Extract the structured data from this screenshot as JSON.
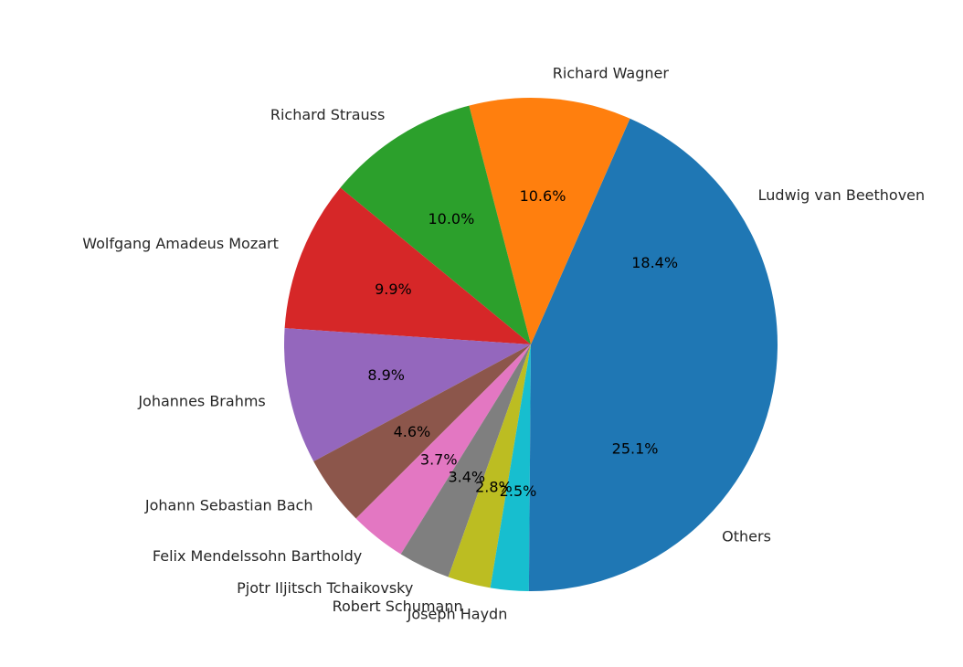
{
  "chart_data": {
    "type": "pie",
    "title": "",
    "start_angle_deg": 0,
    "direction": "counterclockwise",
    "labels": [
      "Ludwig van Beethoven",
      "Richard Wagner",
      "Richard Strauss",
      "Wolfgang Amadeus Mozart",
      "Johannes Brahms",
      "Johann Sebastian Bach",
      "Felix Mendelssohn Bartholdy",
      "Pjotr Iljitsch Tchaikovsky",
      "Robert Schumann",
      "Joseph Haydn",
      "Others"
    ],
    "values": [
      18.4,
      10.6,
      10.0,
      9.9,
      8.9,
      4.6,
      3.7,
      3.4,
      2.8,
      2.5,
      25.1
    ],
    "percent_labels": [
      "18.4%",
      "10.6%",
      "10.0%",
      "9.9%",
      "8.9%",
      "4.6%",
      "3.7%",
      "3.4%",
      "2.8%",
      "2.5%",
      "25.1%"
    ],
    "colors": [
      "#1f77b4",
      "#ff7f0e",
      "#2ca02c",
      "#d62728",
      "#9467bd",
      "#8c564b",
      "#e377c2",
      "#7f7f7f",
      "#bcbd22",
      "#17becf",
      "#1f77b4"
    ]
  }
}
